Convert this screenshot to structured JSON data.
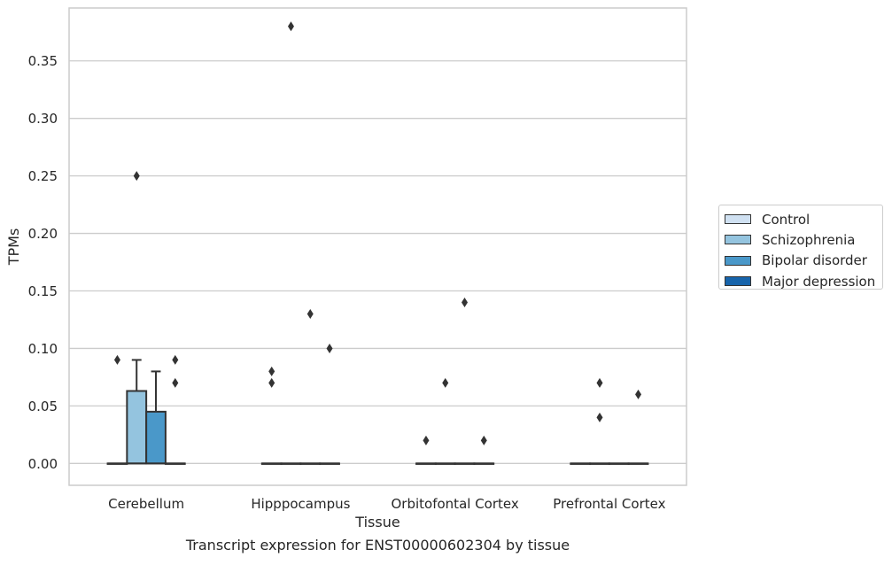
{
  "chart_data": {
    "type": "box",
    "ylabel": "TPMs",
    "xlabel": "Tissue",
    "ylim": [
      -0.019,
      0.396
    ],
    "yticks": [
      "0.00",
      "0.05",
      "0.10",
      "0.15",
      "0.20",
      "0.25",
      "0.30",
      "0.35"
    ],
    "grid": "horizontal",
    "legend_position": "right",
    "categories": [
      "Cerebellum",
      "Hipppocampus",
      "Orbitofontal Cortex",
      "Prefrontal Cortex"
    ],
    "series": [
      {
        "name": "Control",
        "color": "#d0e1f2",
        "boxes": [
          {
            "q1": 0,
            "median": 0,
            "q3": 0,
            "whisker_low": 0,
            "whisker_high": 0,
            "outliers": [
              0.09
            ]
          },
          {
            "q1": 0,
            "median": 0,
            "q3": 0,
            "whisker_low": 0,
            "whisker_high": 0,
            "outliers": [
              0.08,
              0.07
            ]
          },
          {
            "q1": 0,
            "median": 0,
            "q3": 0,
            "whisker_low": 0,
            "whisker_high": 0,
            "outliers": [
              0.02
            ]
          },
          {
            "q1": 0,
            "median": 0,
            "q3": 0,
            "whisker_low": 0,
            "whisker_high": 0,
            "outliers": []
          }
        ]
      },
      {
        "name": "Schizophrenia",
        "color": "#94c4df",
        "boxes": [
          {
            "q1": 0,
            "median": 0,
            "q3": 0.063,
            "whisker_low": 0,
            "whisker_high": 0.09,
            "outliers": [
              0.25
            ]
          },
          {
            "q1": 0,
            "median": 0,
            "q3": 0,
            "whisker_low": 0,
            "whisker_high": 0,
            "outliers": [
              0.38
            ]
          },
          {
            "q1": 0,
            "median": 0,
            "q3": 0,
            "whisker_low": 0,
            "whisker_high": 0,
            "outliers": [
              0.07
            ]
          },
          {
            "q1": 0,
            "median": 0,
            "q3": 0,
            "whisker_low": 0,
            "whisker_high": 0,
            "outliers": [
              0.07,
              0.04
            ]
          }
        ]
      },
      {
        "name": "Bipolar disorder",
        "color": "#4a98c9",
        "boxes": [
          {
            "q1": 0,
            "median": 0,
            "q3": 0.045,
            "whisker_low": 0,
            "whisker_high": 0.08,
            "outliers": []
          },
          {
            "q1": 0,
            "median": 0,
            "q3": 0,
            "whisker_low": 0,
            "whisker_high": 0,
            "outliers": [
              0.13
            ]
          },
          {
            "q1": 0,
            "median": 0,
            "q3": 0,
            "whisker_low": 0,
            "whisker_high": 0,
            "outliers": [
              0.14
            ]
          },
          {
            "q1": 0,
            "median": 0,
            "q3": 0,
            "whisker_low": 0,
            "whisker_high": 0,
            "outliers": []
          }
        ]
      },
      {
        "name": "Major depression",
        "color": "#1764ab",
        "boxes": [
          {
            "q1": 0,
            "median": 0,
            "q3": 0,
            "whisker_low": 0,
            "whisker_high": 0,
            "outliers": [
              0.09,
              0.07
            ]
          },
          {
            "q1": 0,
            "median": 0,
            "q3": 0,
            "whisker_low": 0,
            "whisker_high": 0,
            "outliers": [
              0.1
            ]
          },
          {
            "q1": 0,
            "median": 0,
            "q3": 0,
            "whisker_low": 0,
            "whisker_high": 0,
            "outliers": [
              0.02
            ]
          },
          {
            "q1": 0,
            "median": 0,
            "q3": 0,
            "whisker_low": 0,
            "whisker_high": 0,
            "outliers": [
              0.06
            ]
          }
        ]
      }
    ],
    "caption": "Transcript expression for ENST00000602304 by tissue"
  }
}
